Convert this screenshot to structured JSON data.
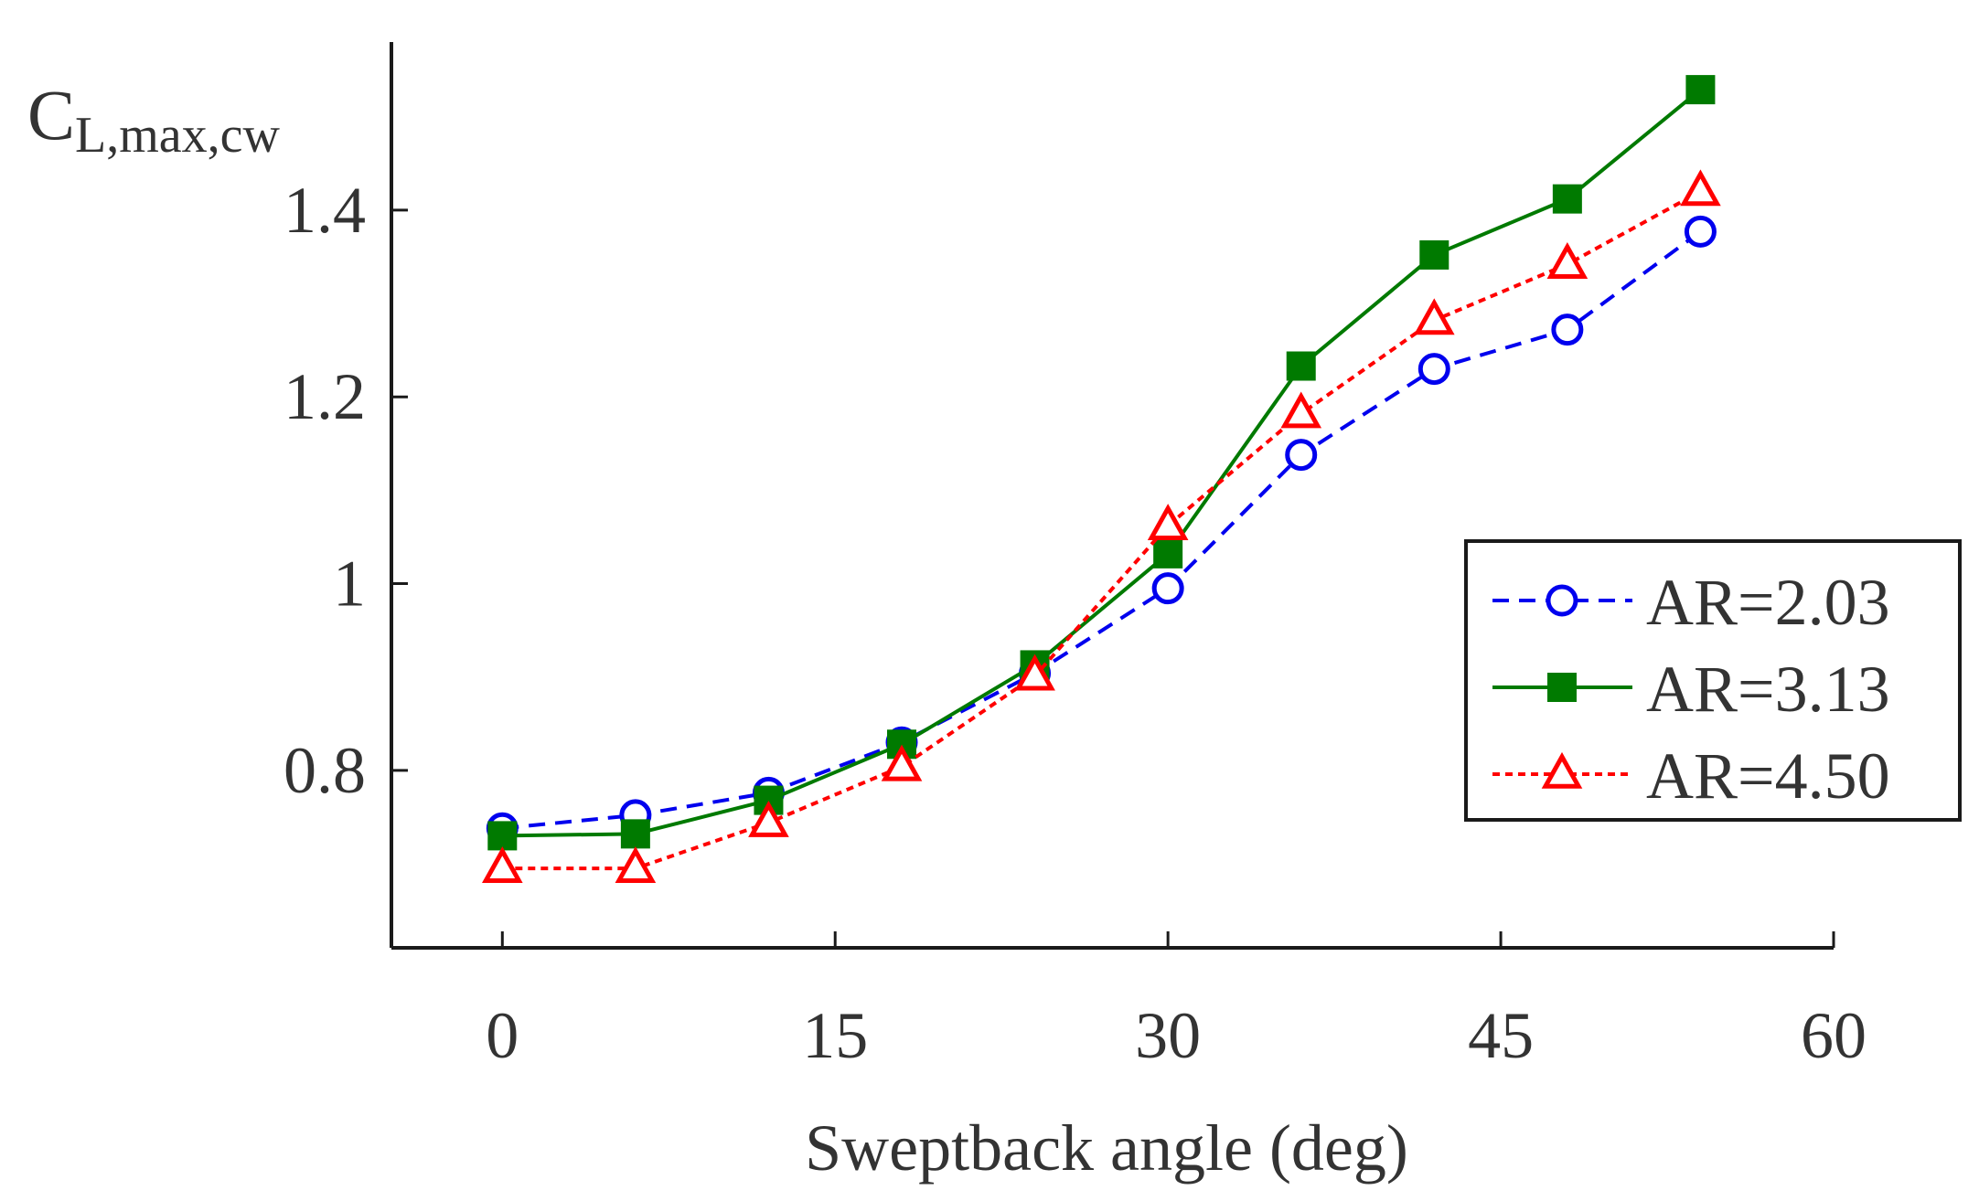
{
  "chart_data": {
    "type": "line",
    "title": "",
    "xlabel": "Sweptback angle (deg)",
    "ylabel": {
      "main": "C",
      "subscript": "L,max,cw"
    },
    "xlim": [
      -5,
      60
    ],
    "ylim": [
      0.61,
      1.58
    ],
    "xticks": [
      0,
      15,
      30,
      45,
      60
    ],
    "yticks": [
      0.8,
      1.0,
      1.2,
      1.4
    ],
    "ytick_labels": [
      "0.8",
      "1",
      "1.2",
      "1.4"
    ],
    "xtick_labels": [
      "0",
      "15",
      "30",
      "45",
      "60"
    ],
    "x": [
      0,
      6,
      12,
      18,
      24,
      30,
      36,
      42,
      48,
      54
    ],
    "legend_position": "right",
    "series": [
      {
        "name": "AR=2.03",
        "color": "#0000ee",
        "line": "dashed",
        "marker": "circle-open",
        "values": [
          0.738,
          0.752,
          0.776,
          0.83,
          0.904,
          0.995,
          1.138,
          1.23,
          1.272,
          1.377
        ]
      },
      {
        "name": "AR=3.13",
        "color": "#007a00",
        "line": "solid",
        "marker": "square-filled",
        "values": [
          0.73,
          0.732,
          0.768,
          0.828,
          0.913,
          1.032,
          1.233,
          1.352,
          1.412,
          1.529
        ]
      },
      {
        "name": "AR=4.50",
        "color": "#ff0000",
        "line": "dotted",
        "marker": "triangle-open",
        "values": [
          0.695,
          0.695,
          0.744,
          0.804,
          0.901,
          1.062,
          1.182,
          1.282,
          1.342,
          1.42
        ]
      }
    ]
  }
}
